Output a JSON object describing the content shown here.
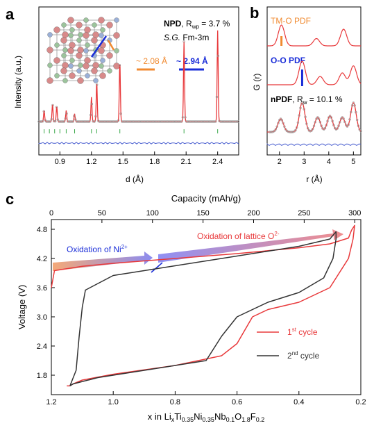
{
  "colors": {
    "fit_red": "#e8383a",
    "obs_gray": "#9a9a9a",
    "diff_blue": "#4a5fd0",
    "tick_green": "#3aa84a",
    "orange": "#f08a30",
    "blue": "#1a2dd8",
    "cycle1": "#e8383a",
    "cycle2": "#333333"
  },
  "panel_a": {
    "label": "a",
    "title_bold": "NPD",
    "title_rest": ", R",
    "title_sub": "wp",
    "title_val": " = 3.7 %",
    "sg_italic": "S.G.",
    "sg_rest": " Fm-3m",
    "ann_tm": "~ 2.08 Å",
    "ann_oo": "~ 2.94 Å",
    "ylabel": "Intensity (a.u.)",
    "xlabel": "d (Å)",
    "xticks": [
      "0.9",
      "1.2",
      "1.5",
      "1.8",
      "2.1",
      "2.4"
    ]
  },
  "panel_b": {
    "label": "b",
    "tmo_label": "TM-O PDF",
    "oo_label": "O-O PDF",
    "npdf_bold": "nPDF",
    "npdf_rest": ", R",
    "npdf_sub": "w",
    "npdf_val": " = 10.1 %",
    "ylabel": "G (r)",
    "xlabel": "r (Å)",
    "xticks": [
      "2",
      "3",
      "4",
      "5"
    ]
  },
  "panel_c": {
    "label": "c",
    "top_axis_label": "Capacity (mAh/g)",
    "top_ticks": [
      "0",
      "50",
      "100",
      "150",
      "200",
      "250",
      "300"
    ],
    "ylabel": "Voltage (V)",
    "yticks": [
      "1.8",
      "2.4",
      "3.0",
      "3.6",
      "4.2",
      "4.8"
    ],
    "xticks": [
      "1.2",
      "1.0",
      "0.8",
      "0.6",
      "0.4",
      "0.2"
    ],
    "xlabel_parts": [
      "x in Li",
      "x",
      "Ti",
      "0.35",
      "Ni",
      "0.35",
      "Nb",
      "0.1",
      "O",
      "1.8",
      "F",
      "0.2"
    ],
    "ann_ni": "Oxidation of Ni",
    "ann_ni_sup": "2+",
    "ann_o": "Oxidation of lattice O",
    "ann_o_sup": "2-",
    "legend_1": "1",
    "legend_1_sup": "st",
    "legend_1_rest": " cycle",
    "legend_2": "2",
    "legend_2_sup": "nd",
    "legend_2_rest": " cycle"
  },
  "chart_data": [
    {
      "type": "scatter",
      "panel": "a",
      "xlabel": "d (Å)",
      "ylabel": "Intensity (a.u.)",
      "xlim": [
        0.7,
        2.6
      ],
      "peaks_d": [
        0.75,
        0.83,
        0.87,
        0.96,
        1.04,
        1.2,
        1.25,
        1.47,
        2.08,
        2.4
      ],
      "peaks_rel_intensity": [
        0.1,
        0.16,
        0.14,
        0.1,
        0.07,
        0.22,
        0.36,
        0.55,
        0.72,
        0.82
      ],
      "bragg_ticks_d": [
        0.75,
        0.8,
        0.85,
        0.9,
        0.96,
        1.04,
        1.2,
        1.25,
        1.47,
        2.08,
        2.4
      ]
    },
    {
      "type": "line",
      "panel": "b",
      "xlabel": "r (Å)",
      "ylabel": "G (r)",
      "xlim": [
        1.5,
        5.3
      ],
      "series": [
        {
          "name": "TM-O PDF",
          "x": [
            1.5,
            2.08,
            2.6,
            3.5,
            4.6,
            5.3
          ],
          "y": [
            0,
            1,
            0.05,
            0.45,
            0.9,
            0.1
          ]
        },
        {
          "name": "O-O PDF",
          "x": [
            1.5,
            2.9,
            3.6,
            4.6,
            5.0,
            5.3
          ],
          "y": [
            0,
            1,
            0.3,
            0.5,
            0.85,
            0.2
          ]
        },
        {
          "name": "nPDF",
          "x": [
            1.6,
            2.05,
            2.9,
            3.5,
            4.1,
            4.5,
            5.0,
            5.3
          ],
          "y": [
            0.3,
            0.5,
            1,
            0.45,
            0.6,
            0.55,
            1,
            0.3
          ]
        }
      ]
    },
    {
      "type": "line",
      "panel": "c",
      "xlabel": "x in LixTi0.35Ni0.35Nb0.1O1.8F0.2",
      "ylabel": "Voltage (V)",
      "x2label": "Capacity (mAh/g)",
      "xlim": [
        1.2,
        0.2
      ],
      "ylim": [
        1.4,
        5.0
      ],
      "series": [
        {
          "name": "1st cycle",
          "x": [
            1.2,
            1.19,
            1.1,
            1.0,
            0.8,
            0.6,
            0.4,
            0.3,
            0.24,
            0.23,
            0.22,
            0.225,
            0.24,
            0.3,
            0.4,
            0.5,
            0.55,
            0.6,
            0.65,
            0.8,
            1.0,
            1.1,
            1.13,
            1.14,
            1.15
          ],
          "y": [
            3.6,
            3.95,
            4.04,
            4.1,
            4.2,
            4.3,
            4.42,
            4.5,
            4.62,
            4.78,
            4.88,
            4.6,
            4.2,
            3.6,
            3.3,
            3.15,
            3.0,
            2.45,
            2.2,
            2.0,
            1.82,
            1.7,
            1.62,
            1.58,
            1.58
          ]
        },
        {
          "name": "2nd cycle",
          "x": [
            1.14,
            1.12,
            1.11,
            1.1,
            1.09,
            1.0,
            0.8,
            0.6,
            0.5,
            0.4,
            0.3,
            0.28,
            0.28,
            0.29,
            0.32,
            0.4,
            0.5,
            0.6,
            0.65,
            0.7,
            0.9,
            1.05,
            1.13,
            1.14
          ],
          "y": [
            1.58,
            1.9,
            2.6,
            3.2,
            3.55,
            3.85,
            4.05,
            4.25,
            4.35,
            4.45,
            4.6,
            4.75,
            4.6,
            4.2,
            3.8,
            3.5,
            3.3,
            3.0,
            2.6,
            2.1,
            1.9,
            1.75,
            1.62,
            1.58
          ]
        }
      ]
    }
  ]
}
